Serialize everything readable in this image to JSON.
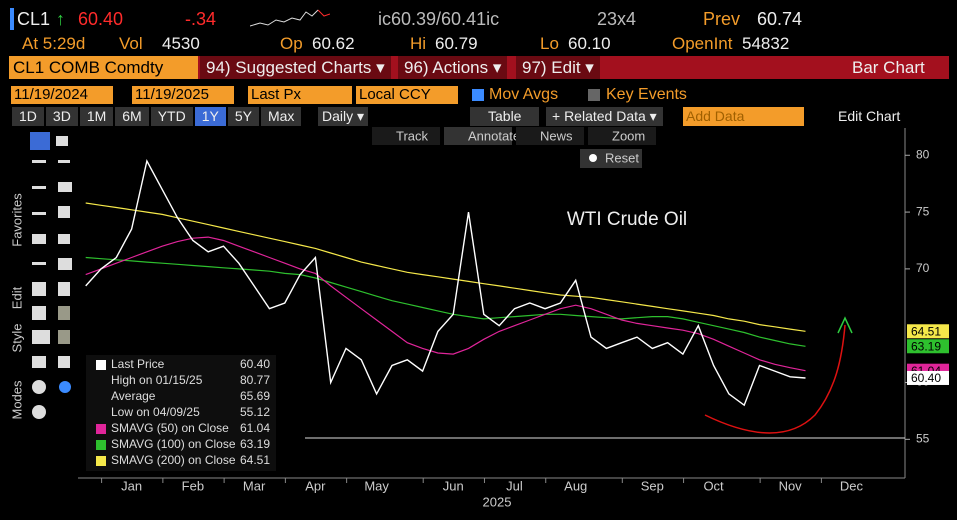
{
  "header": {
    "ticker": "CL1",
    "arrow": "↑",
    "last": "60.40",
    "change": "-.34",
    "bid_ask": "ic60.39/60.41ic",
    "size": "23x4",
    "prev_label": "Prev",
    "prev": "60.74",
    "time": "At 5:29d",
    "vol_label": "Vol",
    "vol": "4530",
    "op_label": "Op",
    "op": "60.62",
    "hi_label": "Hi",
    "hi": "60.79",
    "lo_label": "Lo",
    "lo": "60.10",
    "oi_label": "OpenInt",
    "oi": "54832"
  },
  "menu": {
    "security": "CL1 COMB Comdty",
    "items": [
      "94) Suggested Charts ▾",
      "96) Actions ▾",
      "97) Edit ▾"
    ],
    "chart_kind": "Bar Chart"
  },
  "controls": {
    "start": "11/19/2024",
    "end": "11/19/2025",
    "field": "Last Px",
    "currency": "Local CCY",
    "mov_avgs": "Mov Avgs",
    "key_events": "Key Events",
    "periods": [
      "1D",
      "3D",
      "1M",
      "6M",
      "YTD",
      "1Y",
      "5Y",
      "Max"
    ],
    "frequency": "Daily ▾",
    "table": "Table",
    "related": "+ Related Data ▾",
    "add_data": "Add Data",
    "edit_chart": "Edit Chart"
  },
  "chart_tools": [
    "Track",
    "Annotate",
    "News",
    "Zoom"
  ],
  "reset": "Reset",
  "side_tabs": [
    "Favorites",
    "Edit",
    "Style",
    "Modes"
  ],
  "chart_data": {
    "type": "line",
    "title": "WTI Crude Oil",
    "x_label": "2025",
    "categories": [
      null,
      null,
      null,
      "Jan",
      null,
      null,
      null,
      "Feb",
      null,
      null,
      null,
      "Mar",
      null,
      null,
      null,
      "Apr",
      null,
      null,
      null,
      "May",
      null,
      null,
      null,
      null,
      "Jun",
      null,
      null,
      null,
      "Jul",
      null,
      null,
      null,
      "Aug",
      null,
      null,
      null,
      null,
      "Sep",
      null,
      null,
      null,
      "Oct",
      null,
      null,
      null,
      null,
      "Nov",
      null,
      null,
      null,
      "Dec",
      null,
      null,
      null
    ],
    "series": [
      {
        "name": "Last Price",
        "color": "#ffffff",
        "last": 60.4,
        "last_label": "60.40",
        "values": [
          68.5,
          70,
          71,
          73.5,
          79.5,
          77,
          74.5,
          72.5,
          71.5,
          72,
          70.5,
          68.5,
          66.5,
          67,
          69.5,
          71,
          60,
          63,
          62,
          59,
          61.5,
          62,
          61,
          64.5,
          66,
          75,
          66,
          65,
          66.5,
          67,
          66.5,
          67,
          69,
          64,
          63,
          63.5,
          64,
          63,
          63.5,
          62.5,
          65,
          61.5,
          59,
          58,
          61.5,
          61,
          60.5,
          60.4,
          null,
          null,
          null,
          null,
          null,
          null
        ]
      },
      {
        "name": "SMAVG (50)  on Close",
        "color": "#e0259a",
        "last": 61.04,
        "last_label": "61.04",
        "values": [
          69.5,
          70.0,
          70.5,
          71.0,
          71.5,
          72.0,
          72.4,
          72.7,
          72.8,
          72.5,
          72.0,
          71.5,
          71.0,
          70.5,
          70.0,
          69.6,
          68.5,
          67.5,
          66.5,
          65.5,
          64.5,
          63.5,
          63.0,
          62.6,
          62.5,
          63.0,
          63.8,
          64.5,
          65.0,
          65.5,
          66.0,
          66.5,
          66.8,
          66.5,
          66.0,
          65.5,
          65.2,
          65.0,
          64.8,
          64.6,
          64.3,
          63.8,
          63.2,
          62.6,
          62.0,
          61.6,
          61.3,
          61.04,
          null,
          null,
          null,
          null,
          null,
          null
        ]
      },
      {
        "name": "SMAVG (100)  on Close",
        "color": "#2ec02e",
        "last": 63.19,
        "last_label": "63.19",
        "values": [
          71.0,
          70.9,
          70.8,
          70.7,
          70.6,
          70.5,
          70.4,
          70.3,
          70.2,
          70.1,
          70.0,
          69.9,
          69.8,
          69.6,
          69.5,
          69.2,
          68.8,
          68.4,
          68.0,
          67.6,
          67.2,
          66.9,
          66.6,
          66.3,
          66.0,
          65.8,
          65.6,
          65.7,
          65.8,
          65.9,
          66.0,
          66.0,
          65.9,
          65.8,
          65.7,
          65.6,
          65.7,
          65.8,
          65.8,
          65.6,
          65.3,
          65.0,
          64.7,
          64.4,
          64.0,
          63.7,
          63.4,
          63.19,
          null,
          null,
          null,
          null,
          null,
          null
        ]
      },
      {
        "name": "SMAVG (200)  on Close",
        "color": "#f5e84a",
        "last": 64.51,
        "last_label": "64.51",
        "values": [
          75.8,
          75.6,
          75.4,
          75.2,
          75.0,
          74.8,
          74.5,
          74.2,
          73.9,
          73.6,
          73.3,
          73.0,
          72.7,
          72.4,
          72.1,
          71.8,
          71.4,
          71.0,
          70.6,
          70.3,
          70.0,
          69.7,
          69.5,
          69.3,
          69.1,
          68.9,
          68.7,
          68.5,
          68.3,
          68.1,
          67.9,
          67.7,
          67.6,
          67.5,
          67.3,
          67.1,
          66.9,
          66.7,
          66.5,
          66.3,
          66.1,
          65.9,
          65.6,
          65.4,
          65.1,
          64.9,
          64.7,
          64.51,
          null,
          null,
          null,
          null,
          null,
          null
        ]
      }
    ],
    "stats": [
      {
        "label": "High on 01/15/25",
        "value": 80.77,
        "value_label": "80.77"
      },
      {
        "label": "Average",
        "value": 65.69,
        "value_label": "65.69"
      },
      {
        "label": "Low on 04/09/25",
        "value": 55.12,
        "value_label": "55.12"
      }
    ],
    "ylim": [
      52.3,
      82.4
    ],
    "yticks": [
      55,
      60,
      70,
      75,
      80
    ]
  }
}
